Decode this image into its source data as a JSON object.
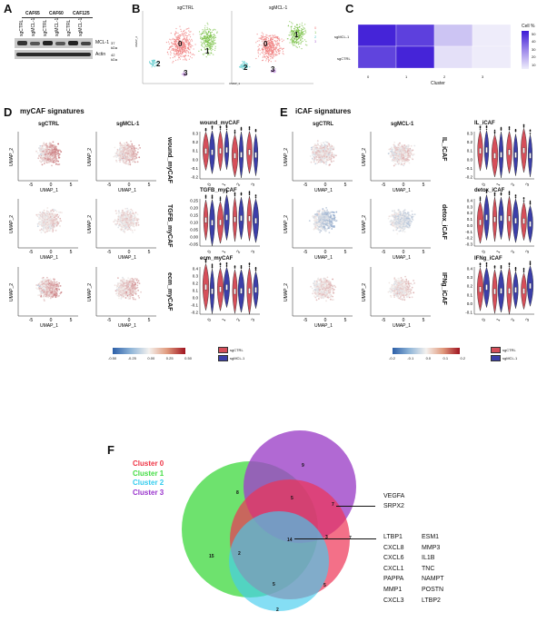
{
  "panels": {
    "A": "A",
    "B": "B",
    "C": "C",
    "D": "D",
    "E": "E",
    "F": "F"
  },
  "panelA": {
    "lanes": [
      "CAF65",
      "CAF60",
      "CAF125"
    ],
    "lane_sub": [
      "sgCTRL",
      "sgMCL-1",
      "sgCTRL",
      "sgMCL-1",
      "sgCTRL",
      "sgMCL-1"
    ],
    "bands": [
      "MCL-1",
      "Actin"
    ],
    "kda": [
      "37 kDa",
      "42 kDa"
    ]
  },
  "panelB": {
    "titles": [
      "sgCTRL",
      "sgMCL-1"
    ],
    "clusters": [
      "0",
      "1",
      "2",
      "3"
    ],
    "legend": [
      "0",
      "1",
      "2",
      "3"
    ],
    "colors": [
      "#f08080",
      "#7cc24a",
      "#4fc7c9",
      "#b57ad6"
    ],
    "xlab": "UMAP_1",
    "ylab": "UMAP_2"
  },
  "panelC": {
    "rows": [
      "sgMCL-1",
      "sgCTRL"
    ],
    "cols": [
      "0",
      "1",
      "2",
      "3"
    ],
    "xlabel": "Cluster",
    "legend_title": "Cell %",
    "legend_ticks": [
      "50",
      "40",
      "30",
      "20",
      "10"
    ],
    "values": [
      [
        52,
        45,
        12,
        2
      ],
      [
        44,
        52,
        5,
        2
      ]
    ]
  },
  "panelD": {
    "heading": "myCAF signatures",
    "cols": [
      "sgCTRL",
      "sgMCL-1"
    ],
    "rows": [
      "wound_myCAF",
      "TGFB_myCAF",
      "ecm_myCAF"
    ],
    "violin_titles": [
      "wound_myCAF",
      "TGFB_myCAF",
      "ecm_myCAF"
    ],
    "axis_x": "UMAP_1",
    "axis_y": "UMAP_2",
    "umap_ticks": [
      "-5",
      "0",
      "5"
    ],
    "violin_x": [
      "0",
      "1",
      "2",
      "3"
    ],
    "violin_y": [
      [
        "0.3",
        "0.2",
        "0.1",
        "0.0",
        "-0.1",
        "-0.2"
      ],
      [
        "0.25",
        "0.20",
        "0.15",
        "0.10",
        "0.05",
        "0.00",
        "-0.05"
      ],
      [
        "0.4",
        "0.3",
        "0.2",
        "0.1",
        "0.0",
        "-0.1",
        "-0.2"
      ]
    ],
    "scale_ticks": [
      "-0.50",
      "-0.25",
      "0.00",
      "0.25",
      "0.50"
    ],
    "legend": [
      "sgCTRL",
      "sgMCL-1"
    ]
  },
  "panelE": {
    "heading": "iCAF signatures",
    "cols": [
      "sgCTRL",
      "sgMCL-1"
    ],
    "rows": [
      "IL_iCAF",
      "detox_iCAF",
      "IFNg_iCAF"
    ],
    "violin_titles": [
      "IL_iCAF",
      "detox_iCAF",
      "IFNg_iCAF"
    ],
    "axis_x": "UMAP_1",
    "axis_y": "UMAP_2",
    "umap_ticks": [
      "-5",
      "0",
      "5"
    ],
    "violin_x": [
      "0",
      "1",
      "2",
      "3"
    ],
    "violin_y": [
      [
        "0.3",
        "0.2",
        "0.1",
        "0.0",
        "-0.1",
        "-0.2"
      ],
      [
        "0.4",
        "0.3",
        "0.2",
        "0.1",
        "0.0",
        "-0.1",
        "-0.2",
        "-0.3"
      ],
      [
        "0.4",
        "0.3",
        "0.2",
        "0.1",
        "0.0",
        "-0.1"
      ]
    ],
    "scale_ticks": [
      "-0.2",
      "-0.1",
      "0.0",
      "0.1",
      "0.2"
    ],
    "legend": [
      "sgCTRL",
      "sgMCL-1"
    ]
  },
  "panelF": {
    "legend": [
      {
        "label": "Cluster 0",
        "color": "#ee3344"
      },
      {
        "label": "Cluster 1",
        "color": "#44dd44"
      },
      {
        "label": "Cluster 2",
        "color": "#33ccee"
      },
      {
        "label": "Cluster 3",
        "color": "#9933cc"
      }
    ],
    "counts": [
      "9",
      "8",
      "5",
      "7",
      "15",
      "14",
      "3",
      "7",
      "2",
      "5",
      "5",
      "2"
    ],
    "genes_top": [
      "VEGFA",
      "SRPX2"
    ],
    "genes_col1": [
      "LTBP1",
      "CXCL8",
      "CXCL6",
      "CXCL1",
      "PAPPA",
      "MMP1",
      "CXCL3"
    ],
    "genes_col2": [
      "ESM1",
      "MMP3",
      "IL1B",
      "TNC",
      "NAMPT",
      "POSTN",
      "LTBP2"
    ]
  }
}
